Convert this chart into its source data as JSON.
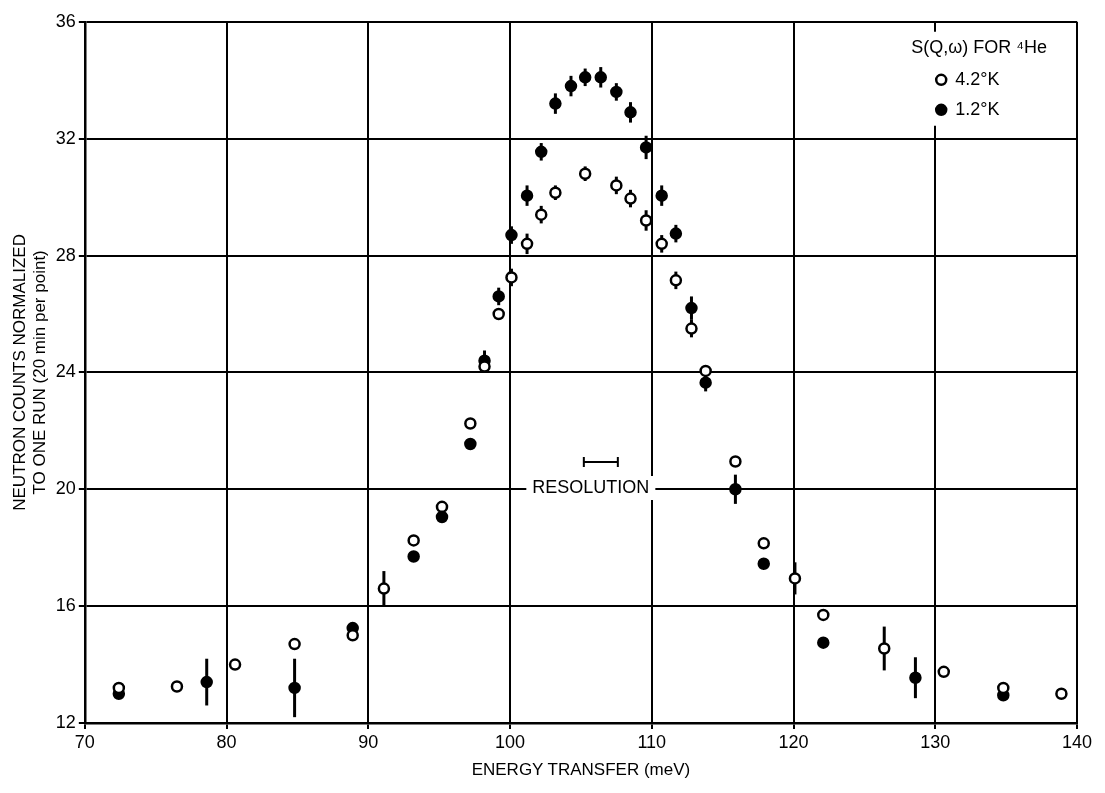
{
  "chart_data": {
    "type": "scatter",
    "xlabel": "ENERGY TRANSFER (meV)",
    "ylabel": "NEUTRON COUNTS NORMALIZED\nTO ONE RUN (20 min per point)",
    "legend_title": "S(Q,ω) FOR ⁴He",
    "legend": "top right",
    "grid": true,
    "marker": "circle",
    "xlim": [
      70,
      140
    ],
    "xticks": [
      70,
      80,
      90,
      100,
      110,
      120,
      130,
      140
    ],
    "ylim": [
      12,
      36
    ],
    "yticks": [
      12,
      16,
      20,
      24,
      28,
      32,
      36
    ],
    "annotations": [
      "RESOLUTION"
    ],
    "series": [
      {
        "name": "4.2°K",
        "color": "#ffffff",
        "x": [
          72.4,
          76.5,
          80.6,
          84.8,
          88.9,
          91.1,
          93.2,
          95.2,
          97.2,
          98.2,
          99.2,
          100.1,
          101.2,
          102.2,
          103.2,
          105.3,
          107.5,
          108.5,
          109.6,
          110.7,
          111.7,
          112.8,
          113.8,
          115.9,
          117.9,
          120.1,
          122.1,
          126.4,
          130.6,
          134.8,
          138.9
        ],
        "values": [
          13.2,
          13.25,
          14.0,
          14.7,
          15.0,
          16.6,
          18.25,
          19.4,
          22.25,
          24.2,
          26.0,
          27.25,
          28.4,
          29.4,
          30.15,
          30.8,
          30.4,
          29.95,
          29.2,
          28.4,
          27.15,
          25.5,
          24.05,
          20.95,
          18.15,
          16.95,
          15.7,
          14.55,
          13.75,
          13.2,
          13.0
        ],
        "errors": [
          null,
          null,
          null,
          null,
          null,
          0.6,
          null,
          null,
          null,
          null,
          null,
          0.3,
          0.35,
          0.3,
          0.25,
          0.25,
          0.3,
          0.3,
          0.35,
          0.3,
          0.3,
          0.3,
          null,
          null,
          null,
          0.55,
          null,
          0.75,
          null,
          null,
          null
        ]
      },
      {
        "name": "1.2°K",
        "color": "#000000",
        "x": [
          72.4,
          78.6,
          84.8,
          88.9,
          93.2,
          95.2,
          97.2,
          98.2,
          99.2,
          100.1,
          101.2,
          102.2,
          103.2,
          104.3,
          105.3,
          106.4,
          107.5,
          108.5,
          109.6,
          110.7,
          111.7,
          112.8,
          113.8,
          115.9,
          117.9,
          122.1,
          128.6,
          134.8
        ],
        "values": [
          13.0,
          13.4,
          13.2,
          15.25,
          17.7,
          19.05,
          21.55,
          24.4,
          26.6,
          28.7,
          30.05,
          31.55,
          33.2,
          33.8,
          34.1,
          34.1,
          33.6,
          32.9,
          31.7,
          30.05,
          28.75,
          26.2,
          23.65,
          20.0,
          17.45,
          14.75,
          13.55,
          12.95
        ],
        "errors": [
          null,
          0.8,
          1.0,
          null,
          null,
          null,
          null,
          0.35,
          0.3,
          0.3,
          0.35,
          0.3,
          0.35,
          0.35,
          0.3,
          0.35,
          0.3,
          0.35,
          0.4,
          0.35,
          0.3,
          0.4,
          0.3,
          0.5,
          null,
          null,
          0.7,
          null
        ]
      }
    ]
  }
}
